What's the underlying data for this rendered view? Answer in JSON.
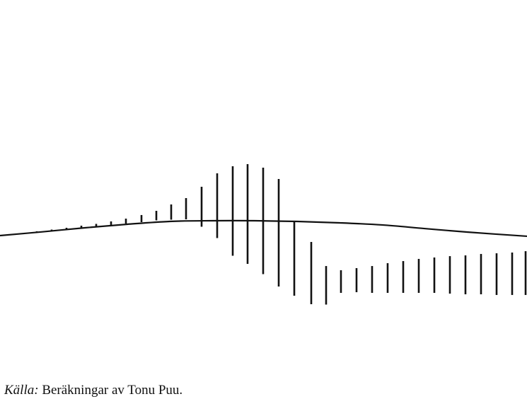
{
  "caption": {
    "source_label": "Källa:",
    "source_text": "Beräkningar av Tonu Puu."
  },
  "colors": {
    "ink": "#111111",
    "background": "#ffffff"
  },
  "chart_data": {
    "type": "line",
    "title": "",
    "xlabel": "",
    "ylabel": "",
    "axes_visible": false,
    "grid": false,
    "x_range": [
      0,
      745
    ],
    "y_range": [
      -100,
      100
    ],
    "series": [
      {
        "kind": "smooth-curve",
        "x": [
          0,
          60,
          120,
          180,
          240,
          300,
          360,
          420,
          480,
          540,
          600,
          660,
          745
        ],
        "y": [
          0.0,
          5.0,
          10.4,
          15.1,
          18.9,
          19.8,
          19.8,
          18.9,
          17.0,
          14.2,
          9.4,
          4.7,
          -0.9
        ]
      },
      {
        "kind": "vertical-segments",
        "segments": [
          {
            "x": 52,
            "y0": 4.7,
            "y1": 5.7
          },
          {
            "x": 73,
            "y0": 6.6,
            "y1": 8.0
          },
          {
            "x": 94,
            "y0": 8.5,
            "y1": 10.4
          },
          {
            "x": 115,
            "y0": 10.4,
            "y1": 13.2
          },
          {
            "x": 136,
            "y0": 12.3,
            "y1": 15.6
          },
          {
            "x": 157,
            "y0": 14.2,
            "y1": 18.9
          },
          {
            "x": 178,
            "y0": 16.0,
            "y1": 22.6
          },
          {
            "x": 200,
            "y0": 17.9,
            "y1": 27.4
          },
          {
            "x": 221,
            "y0": 20.3,
            "y1": 33.0
          },
          {
            "x": 242,
            "y0": 21.2,
            "y1": 41.5
          },
          {
            "x": 263,
            "y0": 21.7,
            "y1": 50.0
          },
          {
            "x": 285,
            "y0": 11.8,
            "y1": 65.1
          },
          {
            "x": 307,
            "y0": -3.3,
            "y1": 83.0
          },
          {
            "x": 329,
            "y0": -26.9,
            "y1": 92.5
          },
          {
            "x": 350,
            "y0": -37.7,
            "y1": 95.3
          },
          {
            "x": 372,
            "y0": -51.4,
            "y1": 90.6
          },
          {
            "x": 394,
            "y0": -67.9,
            "y1": 75.5
          },
          {
            "x": 416,
            "y0": -80.2,
            "y1": 19.8
          },
          {
            "x": 440,
            "y0": -91.5,
            "y1": -8.5
          },
          {
            "x": 461,
            "y0": -92.0,
            "y1": -40.6
          },
          {
            "x": 482,
            "y0": -76.4,
            "y1": -46.2
          },
          {
            "x": 504,
            "y0": -75.5,
            "y1": -43.4
          },
          {
            "x": 526,
            "y0": -76.4,
            "y1": -40.6
          },
          {
            "x": 548,
            "y0": -76.4,
            "y1": -36.8
          },
          {
            "x": 570,
            "y0": -76.4,
            "y1": -34.0
          },
          {
            "x": 592,
            "y0": -76.4,
            "y1": -31.1
          },
          {
            "x": 614,
            "y0": -76.4,
            "y1": -29.2
          },
          {
            "x": 636,
            "y0": -77.4,
            "y1": -27.4
          },
          {
            "x": 658,
            "y0": -78.3,
            "y1": -26.4
          },
          {
            "x": 680,
            "y0": -78.3,
            "y1": -24.5
          },
          {
            "x": 702,
            "y0": -79.2,
            "y1": -23.6
          },
          {
            "x": 724,
            "y0": -79.2,
            "y1": -22.6
          },
          {
            "x": 743,
            "y0": -79.2,
            "y1": -20.8
          }
        ]
      }
    ]
  }
}
